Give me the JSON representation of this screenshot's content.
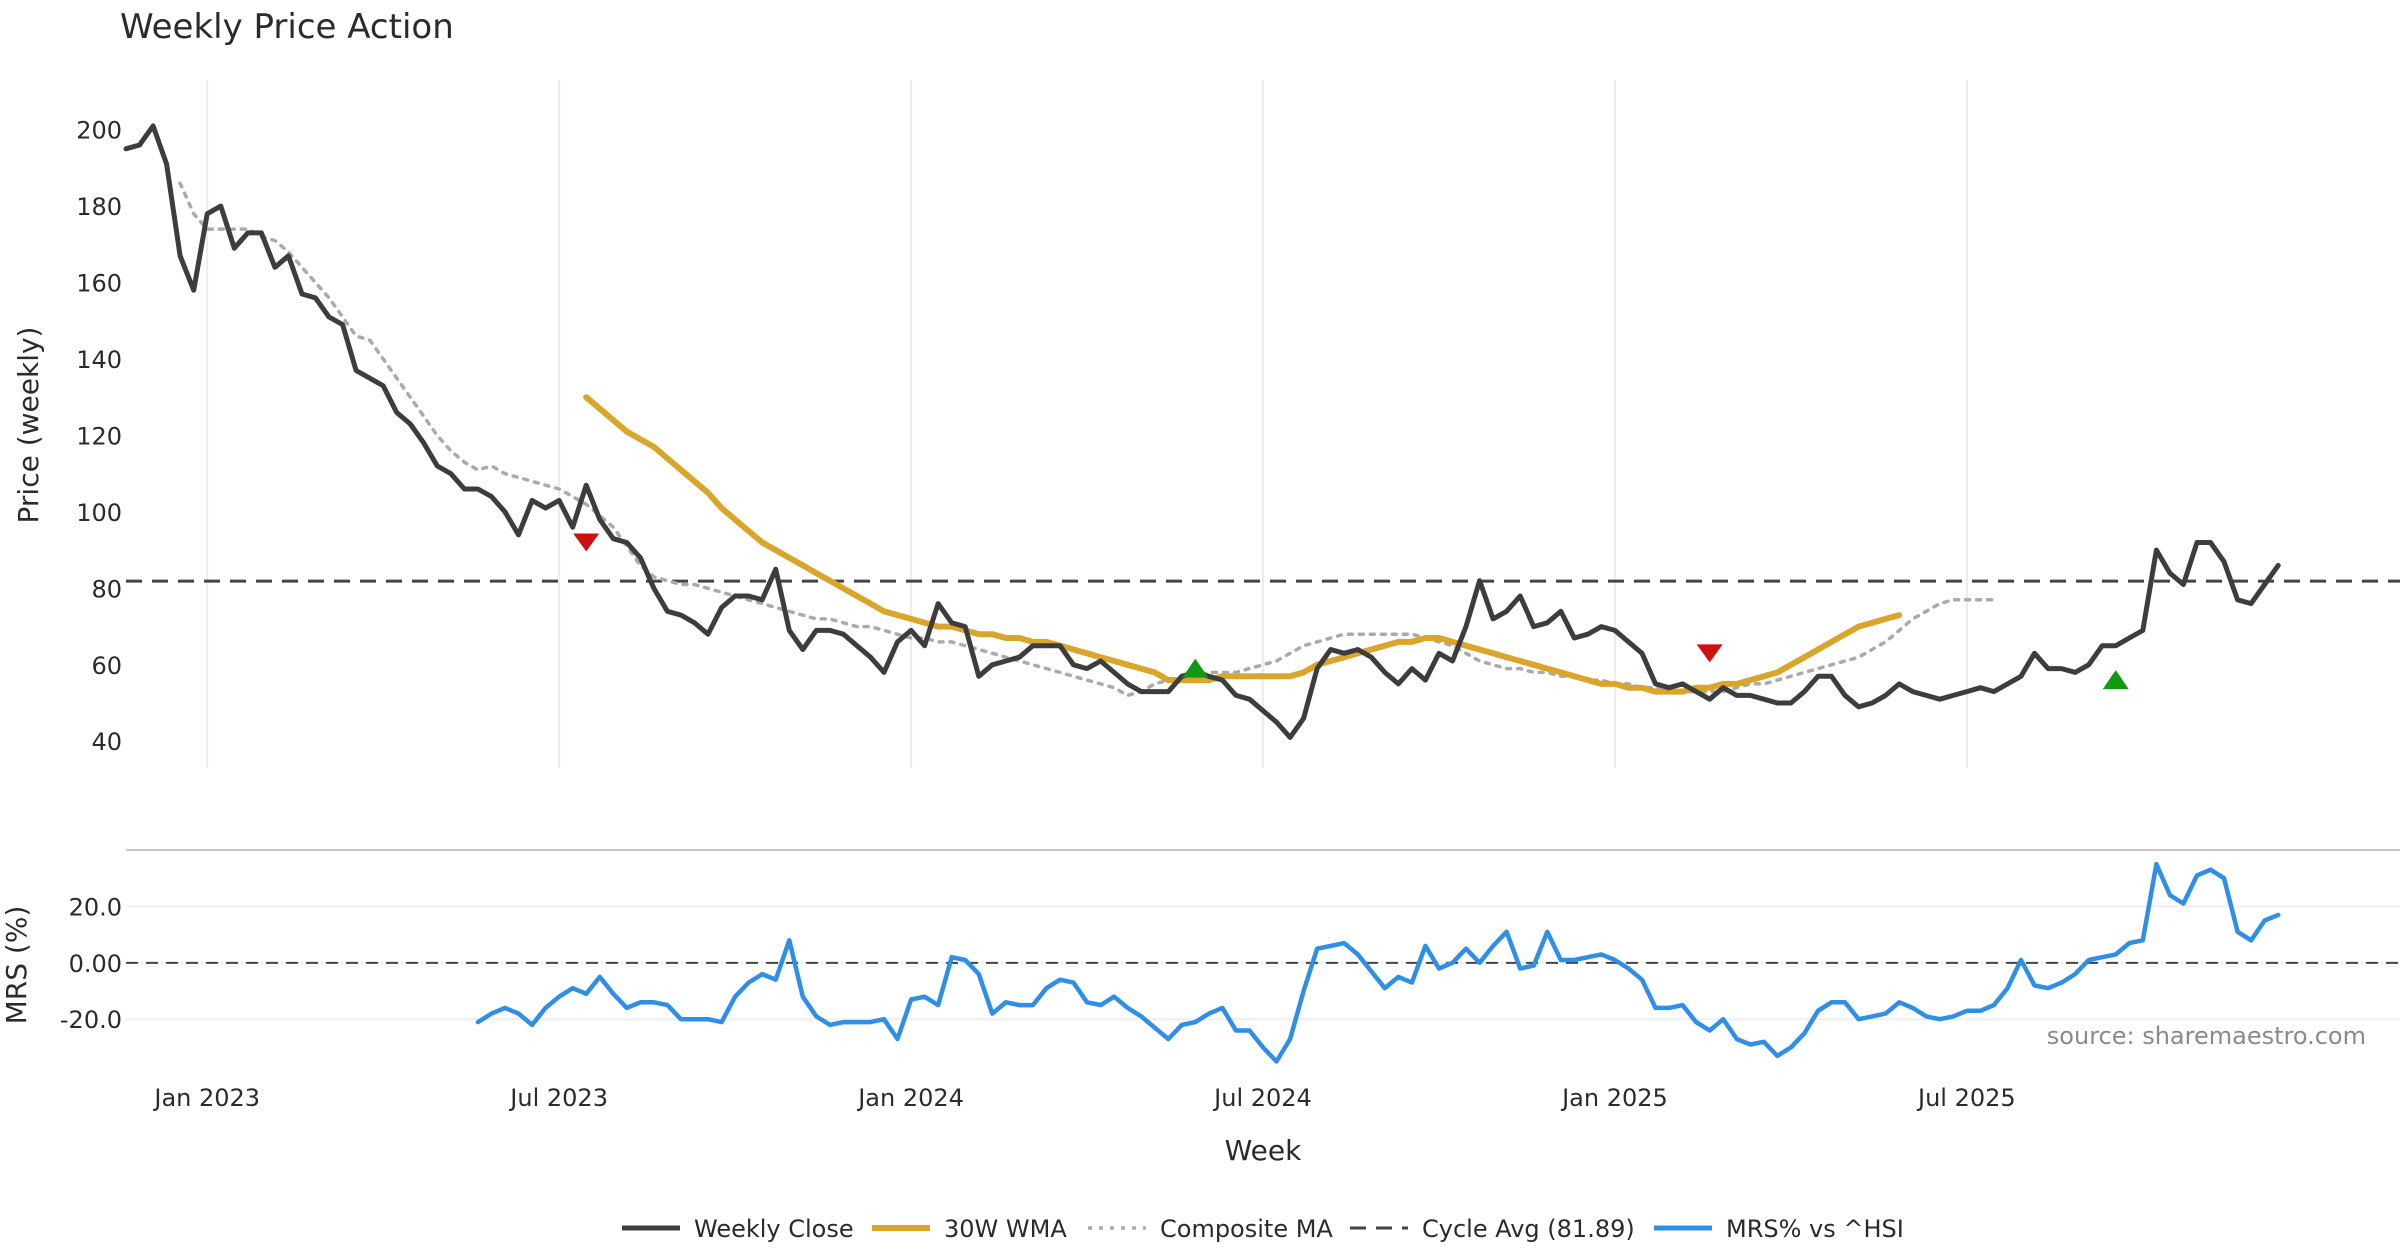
{
  "chart_data": {
    "type": "line",
    "title": "Weekly Price Action",
    "source": "source: sharemaestro.com",
    "colors": {
      "close": "#3d3d3d",
      "wma": "#d9a52b",
      "composite": "#aaaaaa",
      "cycle": "#444444",
      "mrs": "#2f8ee6",
      "signal_down": "#cc1111",
      "signal_up": "#119911"
    },
    "xlabel": "Week",
    "x_ticks": [
      "Jan 2023",
      "Jul 2023",
      "Jan 2024",
      "Jul 2024",
      "Jan 2025",
      "Jul 2025"
    ],
    "x_range": [
      -6,
      162
    ],
    "price_panel": {
      "ylabel": "Price (weekly)",
      "ylim": [
        33,
        213
      ],
      "yticks": [
        40,
        60,
        80,
        100,
        120,
        140,
        160,
        180,
        200
      ],
      "cycle_avg": 81.89
    },
    "mrs_panel": {
      "ylabel": "MRS (%)",
      "ylim": [
        -38,
        40
      ],
      "yticks": [
        "20.0",
        "0.00",
        "-20.0"
      ],
      "ytick_values": [
        20,
        0,
        -20
      ]
    },
    "legend": [
      "Weekly Close",
      "30W WMA",
      "Composite MA",
      "Cycle Avg (81.89)",
      "MRS% vs ^HSI"
    ],
    "series": [
      {
        "name": "Weekly Close",
        "start_week": -6,
        "values": [
          195,
          196,
          201,
          191,
          167,
          158,
          178,
          180,
          169,
          173,
          173,
          164,
          167,
          157,
          156,
          151,
          149,
          137,
          135,
          133,
          126,
          123,
          118,
          112,
          110,
          106,
          106,
          104,
          100,
          94,
          103,
          101,
          103,
          96,
          107,
          98,
          93,
          92,
          88,
          80,
          74,
          73,
          71,
          68,
          75,
          78,
          78,
          77,
          85,
          69,
          64,
          69,
          69,
          68,
          65,
          62,
          58,
          66,
          69,
          65,
          76,
          71,
          70,
          57,
          60,
          61,
          62,
          65,
          65,
          65,
          60,
          59,
          61,
          58,
          55,
          53,
          53,
          53,
          57,
          58,
          57,
          56,
          52,
          51,
          48,
          45,
          41,
          46,
          59,
          64,
          63,
          64,
          62,
          58,
          55,
          59,
          56,
          63,
          61,
          70,
          82,
          72,
          74,
          78,
          70,
          71,
          74,
          67,
          68,
          70,
          69,
          66,
          63,
          55,
          54,
          55,
          53,
          51,
          54,
          52,
          52,
          51,
          50,
          50,
          53,
          57,
          57,
          52,
          49,
          50,
          52,
          55,
          53,
          52,
          51,
          52,
          53,
          54,
          53,
          55,
          57,
          63,
          59,
          59,
          58,
          60,
          65,
          65,
          67,
          69,
          90,
          84,
          81,
          92,
          92,
          87,
          77,
          76,
          81,
          86
        ]
      },
      {
        "name": "30W WMA",
        "start_week": 28,
        "values": [
          130,
          127,
          124,
          121,
          119,
          117,
          114,
          111,
          108,
          105,
          101,
          98,
          95,
          92,
          90,
          88,
          86,
          84,
          82,
          80,
          78,
          76,
          74,
          73,
          72,
          71,
          70,
          70,
          69,
          68,
          68,
          67,
          67,
          66,
          66,
          65,
          64,
          63,
          62,
          61,
          60,
          59,
          58,
          56,
          56,
          56,
          56,
          57,
          57,
          57,
          57,
          57,
          57,
          58,
          60,
          61,
          62,
          63,
          64,
          65,
          66,
          66,
          67,
          67,
          66,
          65,
          64,
          63,
          62,
          61,
          60,
          59,
          58,
          57,
          56,
          55,
          55,
          54,
          54,
          53,
          53,
          53,
          54,
          54,
          55,
          55,
          56,
          57,
          58,
          60,
          62,
          64,
          66,
          68,
          70,
          71,
          72,
          73
        ]
      },
      {
        "name": "Composite MA",
        "start_week": -2,
        "values": [
          186,
          178,
          174,
          174,
          174,
          174,
          172,
          171,
          168,
          164,
          160,
          156,
          151,
          146,
          145,
          140,
          135,
          130,
          125,
          120,
          116,
          113,
          111,
          112,
          110,
          109,
          108,
          107,
          106,
          104,
          102,
          99,
          96,
          91,
          86,
          83,
          82,
          81,
          81,
          80,
          79,
          78,
          77,
          76,
          75,
          74,
          73,
          72,
          72,
          71,
          70,
          70,
          69,
          68,
          67,
          67,
          66,
          66,
          65,
          64,
          63,
          62,
          61,
          60,
          59,
          58,
          57,
          56,
          55,
          54,
          52,
          53,
          55,
          56,
          57,
          57,
          58,
          58,
          58,
          59,
          60,
          61,
          63,
          65,
          66,
          67,
          68,
          68,
          68,
          68,
          68,
          68,
          67,
          66,
          65,
          63,
          61,
          60,
          59,
          59,
          58,
          58,
          57,
          57,
          56,
          56,
          55,
          55,
          54,
          54,
          54,
          53,
          53,
          53,
          53,
          54,
          55,
          55,
          56,
          57,
          58,
          59,
          60,
          61,
          62,
          64,
          66,
          69,
          72,
          74,
          76,
          77,
          77,
          77,
          77
        ]
      },
      {
        "name": "MRS% vs ^HSI",
        "start_week": 20,
        "values": [
          -21,
          -18,
          -16,
          -18,
          -22,
          -16,
          -12,
          -9,
          -11,
          -5,
          -11,
          -16,
          -14,
          -14,
          -15,
          -20,
          -20,
          -20,
          -21,
          -12,
          -7,
          -4,
          -6,
          8,
          -12,
          -19,
          -22,
          -21,
          -21,
          -21,
          -20,
          -27,
          -13,
          -12,
          -15,
          2,
          1,
          -4,
          -18,
          -14,
          -15,
          -15,
          -9,
          -6,
          -7,
          -14,
          -15,
          -12,
          -16,
          -19,
          -23,
          -27,
          -22,
          -21,
          -18,
          -16,
          -24,
          -24,
          -30,
          -35,
          -27,
          -10,
          5,
          6,
          7,
          3,
          -3,
          -9,
          -5,
          -7,
          6,
          -2,
          0,
          5,
          0,
          6,
          11,
          -2,
          -1,
          11,
          1,
          1,
          2,
          3,
          1,
          -2,
          -6,
          -16,
          -16,
          -15,
          -21,
          -24,
          -20,
          -27,
          -29,
          -28,
          -33,
          -30,
          -25,
          -17,
          -14,
          -14,
          -20,
          -19,
          -18,
          -14,
          -16,
          -19,
          -20,
          -19,
          -17,
          -17,
          -15,
          -9,
          1,
          -8,
          -9,
          -7,
          -4,
          1,
          2,
          3,
          7,
          8,
          35,
          24,
          21,
          31,
          33,
          30,
          11,
          8,
          15,
          17
        ]
      }
    ],
    "signals": [
      {
        "type": "down",
        "week": 28,
        "value": 92
      },
      {
        "type": "up",
        "week": 73,
        "value": 59
      },
      {
        "type": "down",
        "week": 111,
        "value": 63
      },
      {
        "type": "up",
        "week": 141,
        "value": 56
      }
    ]
  }
}
